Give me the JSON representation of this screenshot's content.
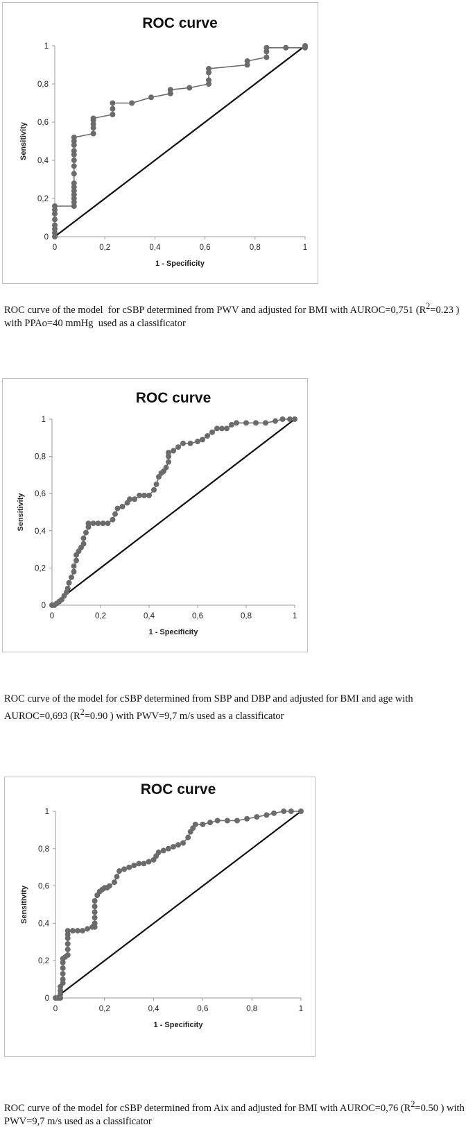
{
  "figures": [
    {
      "caption_html": "ROC curve of the model&nbsp; for cSBP determined from PWV and adjusted for BMI with AUROC=0,751 (R<sup>2</sup>=0.23 ) with PPAo=40 mmHg&nbsp; used as a classificator"
    },
    {
      "caption_html": "ROC curve of the model for cSBP determined from SBP and DBP and adjusted for BMI and age with AUROC=0,693 (R<sup>2</sup>=0.90 ) with PWV=9,7 m/s used as a classificator"
    },
    {
      "caption_html": "ROC curve of the model for cSBP determined from Aix and adjusted for BMI with AUROC=0,76 (R<sup>2</sup>=0.50 ) with PWV=9,7 m/s used as a classificator"
    }
  ],
  "chart_data": [
    {
      "type": "line",
      "title": "ROC curve",
      "xlabel": "1 - Specificity",
      "ylabel": "Sensitivity",
      "xlim": [
        0,
        1
      ],
      "ylim": [
        0,
        1
      ],
      "x_ticks": [
        "0",
        "0,2",
        "0,4",
        "0,6",
        "0,8",
        "1"
      ],
      "y_ticks": [
        "0",
        "0,2",
        "0,4",
        "0,6",
        "0,8",
        "1"
      ],
      "grid": false,
      "legend": "none",
      "marker_color": "#6b6b6b",
      "diagonal_color": "#111111",
      "series": [
        {
          "points": [
            [
              0,
              0
            ],
            [
              0,
              0.02
            ],
            [
              0,
              0.04
            ],
            [
              0,
              0.06
            ],
            [
              0,
              0.09
            ],
            [
              0,
              0.12
            ],
            [
              0,
              0.14
            ],
            [
              0,
              0.16
            ],
            [
              0.077,
              0.16
            ],
            [
              0.077,
              0.18
            ],
            [
              0.077,
              0.2
            ],
            [
              0.077,
              0.22
            ],
            [
              0.077,
              0.24
            ],
            [
              0.077,
              0.26
            ],
            [
              0.077,
              0.28
            ],
            [
              0.077,
              0.33
            ],
            [
              0.077,
              0.37
            ],
            [
              0.077,
              0.4
            ],
            [
              0.077,
              0.43
            ],
            [
              0.077,
              0.45
            ],
            [
              0.077,
              0.48
            ],
            [
              0.077,
              0.5
            ],
            [
              0.077,
              0.52
            ],
            [
              0.154,
              0.54
            ],
            [
              0.154,
              0.57
            ],
            [
              0.154,
              0.59
            ],
            [
              0.154,
              0.61
            ],
            [
              0.154,
              0.62
            ],
            [
              0.231,
              0.64
            ],
            [
              0.231,
              0.67
            ],
            [
              0.231,
              0.7
            ],
            [
              0.308,
              0.7
            ],
            [
              0.385,
              0.73
            ],
            [
              0.462,
              0.75
            ],
            [
              0.462,
              0.77
            ],
            [
              0.538,
              0.78
            ],
            [
              0.615,
              0.8
            ],
            [
              0.615,
              0.82
            ],
            [
              0.615,
              0.86
            ],
            [
              0.615,
              0.88
            ],
            [
              0.769,
              0.9
            ],
            [
              0.769,
              0.92
            ],
            [
              0.846,
              0.94
            ],
            [
              0.846,
              0.97
            ],
            [
              0.846,
              0.99
            ],
            [
              0.923,
              0.99
            ],
            [
              1,
              0.99
            ],
            [
              1,
              1
            ]
          ]
        }
      ]
    },
    {
      "type": "line",
      "title": "ROC curve",
      "xlabel": "1 - Specificity",
      "ylabel": "Sensitivity",
      "xlim": [
        0,
        1
      ],
      "ylim": [
        0,
        1
      ],
      "x_ticks": [
        "0",
        "0,2",
        "0,4",
        "0,6",
        "0,8",
        "1"
      ],
      "y_ticks": [
        "0",
        "0,2",
        "0,4",
        "0,6",
        "0,8",
        "1"
      ],
      "grid": false,
      "legend": "none",
      "marker_color": "#6b6b6b",
      "diagonal_color": "#111111",
      "series": [
        {
          "points": [
            [
              0,
              0
            ],
            [
              0.01,
              0
            ],
            [
              0.02,
              0.01
            ],
            [
              0.03,
              0.02
            ],
            [
              0.04,
              0.03
            ],
            [
              0.05,
              0.05
            ],
            [
              0.06,
              0.07
            ],
            [
              0.065,
              0.09
            ],
            [
              0.07,
              0.12
            ],
            [
              0.08,
              0.15
            ],
            [
              0.09,
              0.18
            ],
            [
              0.09,
              0.21
            ],
            [
              0.1,
              0.24
            ],
            [
              0.1,
              0.27
            ],
            [
              0.11,
              0.29
            ],
            [
              0.12,
              0.31
            ],
            [
              0.13,
              0.33
            ],
            [
              0.13,
              0.36
            ],
            [
              0.14,
              0.39
            ],
            [
              0.15,
              0.42
            ],
            [
              0.15,
              0.44
            ],
            [
              0.17,
              0.44
            ],
            [
              0.19,
              0.44
            ],
            [
              0.21,
              0.44
            ],
            [
              0.23,
              0.44
            ],
            [
              0.25,
              0.46
            ],
            [
              0.26,
              0.49
            ],
            [
              0.27,
              0.52
            ],
            [
              0.29,
              0.53
            ],
            [
              0.31,
              0.55
            ],
            [
              0.32,
              0.57
            ],
            [
              0.34,
              0.57
            ],
            [
              0.36,
              0.59
            ],
            [
              0.38,
              0.59
            ],
            [
              0.4,
              0.59
            ],
            [
              0.42,
              0.62
            ],
            [
              0.43,
              0.65
            ],
            [
              0.44,
              0.69
            ],
            [
              0.45,
              0.71
            ],
            [
              0.46,
              0.72
            ],
            [
              0.47,
              0.74
            ],
            [
              0.48,
              0.77
            ],
            [
              0.48,
              0.8
            ],
            [
              0.48,
              0.82
            ],
            [
              0.5,
              0.83
            ],
            [
              0.52,
              0.85
            ],
            [
              0.54,
              0.87
            ],
            [
              0.57,
              0.87
            ],
            [
              0.6,
              0.88
            ],
            [
              0.62,
              0.89
            ],
            [
              0.64,
              0.91
            ],
            [
              0.66,
              0.93
            ],
            [
              0.68,
              0.95
            ],
            [
              0.7,
              0.95
            ],
            [
              0.72,
              0.95
            ],
            [
              0.74,
              0.97
            ],
            [
              0.76,
              0.98
            ],
            [
              0.8,
              0.98
            ],
            [
              0.84,
              0.98
            ],
            [
              0.88,
              0.98
            ],
            [
              0.92,
              0.99
            ],
            [
              0.95,
              1
            ],
            [
              0.98,
              1
            ],
            [
              1,
              1
            ]
          ]
        }
      ]
    },
    {
      "type": "line",
      "title": "ROC curve",
      "xlabel": "1 - Specificity",
      "ylabel": "Sensitivity",
      "xlim": [
        0,
        1
      ],
      "ylim": [
        0,
        1
      ],
      "x_ticks": [
        "0",
        "0,2",
        "0,4",
        "0,6",
        "0,8",
        "1"
      ],
      "y_ticks": [
        "0",
        "0,2",
        "0,4",
        "0,6",
        "0,8",
        "1"
      ],
      "grid": false,
      "legend": "none",
      "marker_color": "#6b6b6b",
      "diagonal_color": "#111111",
      "series": [
        {
          "points": [
            [
              0,
              0
            ],
            [
              0.01,
              0
            ],
            [
              0.02,
              0
            ],
            [
              0.02,
              0.02
            ],
            [
              0.02,
              0.04
            ],
            [
              0.02,
              0.06
            ],
            [
              0.03,
              0.08
            ],
            [
              0.03,
              0.1
            ],
            [
              0.03,
              0.13
            ],
            [
              0.03,
              0.16
            ],
            [
              0.03,
              0.19
            ],
            [
              0.03,
              0.21
            ],
            [
              0.04,
              0.22
            ],
            [
              0.05,
              0.23
            ],
            [
              0.05,
              0.26
            ],
            [
              0.05,
              0.29
            ],
            [
              0.05,
              0.32
            ],
            [
              0.05,
              0.34
            ],
            [
              0.05,
              0.36
            ],
            [
              0.07,
              0.36
            ],
            [
              0.09,
              0.36
            ],
            [
              0.11,
              0.36
            ],
            [
              0.13,
              0.37
            ],
            [
              0.15,
              0.38
            ],
            [
              0.16,
              0.38
            ],
            [
              0.16,
              0.4
            ],
            [
              0.16,
              0.43
            ],
            [
              0.16,
              0.46
            ],
            [
              0.16,
              0.49
            ],
            [
              0.16,
              0.52
            ],
            [
              0.17,
              0.55
            ],
            [
              0.18,
              0.57
            ],
            [
              0.19,
              0.58
            ],
            [
              0.2,
              0.59
            ],
            [
              0.21,
              0.59
            ],
            [
              0.22,
              0.6
            ],
            [
              0.24,
              0.62
            ],
            [
              0.25,
              0.65
            ],
            [
              0.26,
              0.68
            ],
            [
              0.28,
              0.69
            ],
            [
              0.3,
              0.7
            ],
            [
              0.32,
              0.71
            ],
            [
              0.34,
              0.72
            ],
            [
              0.36,
              0.72
            ],
            [
              0.38,
              0.73
            ],
            [
              0.4,
              0.74
            ],
            [
              0.41,
              0.76
            ],
            [
              0.42,
              0.78
            ],
            [
              0.44,
              0.79
            ],
            [
              0.46,
              0.8
            ],
            [
              0.48,
              0.81
            ],
            [
              0.5,
              0.82
            ],
            [
              0.52,
              0.83
            ],
            [
              0.54,
              0.86
            ],
            [
              0.55,
              0.89
            ],
            [
              0.56,
              0.91
            ],
            [
              0.57,
              0.93
            ],
            [
              0.6,
              0.93
            ],
            [
              0.63,
              0.94
            ],
            [
              0.66,
              0.95
            ],
            [
              0.7,
              0.95
            ],
            [
              0.74,
              0.95
            ],
            [
              0.78,
              0.96
            ],
            [
              0.82,
              0.97
            ],
            [
              0.86,
              0.98
            ],
            [
              0.89,
              0.99
            ],
            [
              0.93,
              1
            ],
            [
              0.96,
              1
            ],
            [
              1,
              1
            ]
          ]
        }
      ]
    }
  ]
}
